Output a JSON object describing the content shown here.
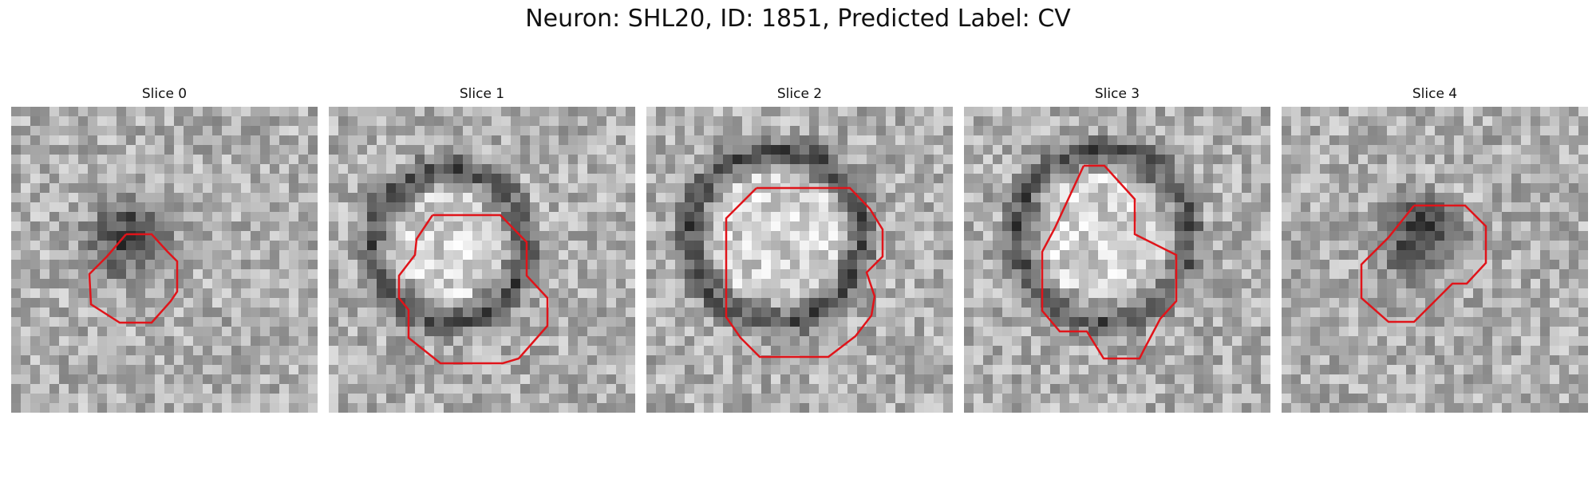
{
  "figure": {
    "title": "Neuron: SHL20, ID: 1851, Predicted Label: CV"
  },
  "panels": [
    {
      "title": "Slice 0",
      "blob": "dark-center",
      "outline_color": "#e0141a"
    },
    {
      "title": "Slice 1",
      "blob": "dark-ring-bright-center",
      "outline_color": "#e0141a"
    },
    {
      "title": "Slice 2",
      "blob": "dark-ring-bright-center",
      "outline_color": "#e0141a"
    },
    {
      "title": "Slice 3",
      "blob": "dark-ring-bright-center",
      "outline_color": "#e0141a"
    },
    {
      "title": "Slice 4",
      "blob": "dark-center",
      "outline_color": "#e0141a"
    }
  ],
  "colormap": "gray"
}
